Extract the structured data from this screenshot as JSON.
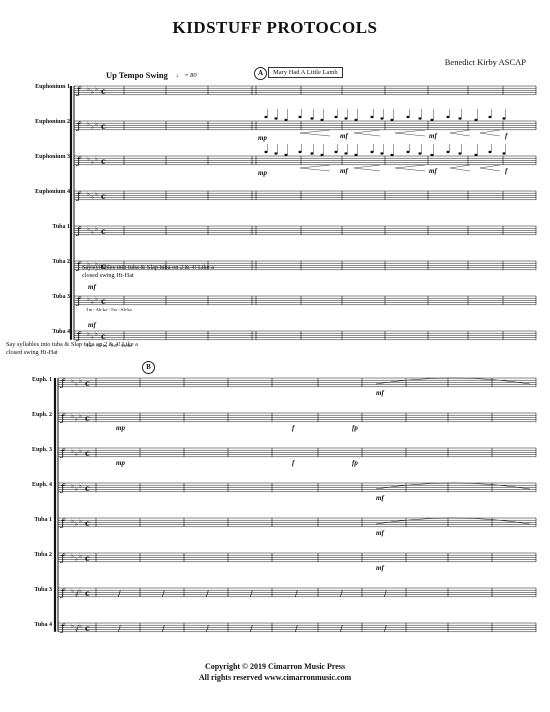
{
  "title": "KIDSTUFF PROTOCOLS",
  "composer": "Benedict Kirby ASCAP",
  "tempo": {
    "text": "Up Tempo Swing",
    "mark": "♩ = 80"
  },
  "rehearsal": {
    "a": "A",
    "a_text": "Mary Had A Little Lamb",
    "b": "B"
  },
  "system1": {
    "instruments": [
      "Euphonium 1",
      "Euphonium 2",
      "Euphonium 3",
      "Euphonium 4",
      "Tuba 1",
      "Tuba 2",
      "Tuba 3",
      "Tuba 4"
    ]
  },
  "system2": {
    "instruments": [
      "Euph. 1",
      "Euph. 2",
      "Euph. 3",
      "Euph. 4",
      "Tuba 1",
      "Tuba 2",
      "Tuba 3",
      "Tuba 4"
    ]
  },
  "instruction_text": "Say syllables into tuba & Slap tuba on 2 & 4! Like a closed swing Hi-Hat",
  "syllables": "Tm - Ah-ka - Tm - Ah-ka",
  "dynamics": {
    "mp": "mp",
    "mf": "mf",
    "f": "f",
    "fp": "fp"
  },
  "footer": {
    "line1": "Copyright © 2019 Cimarron Music Press",
    "line2": "All rights reserved    www.cimarronmusic.com"
  },
  "colors": {
    "ink": "#111111",
    "paper": "#ffffff"
  }
}
